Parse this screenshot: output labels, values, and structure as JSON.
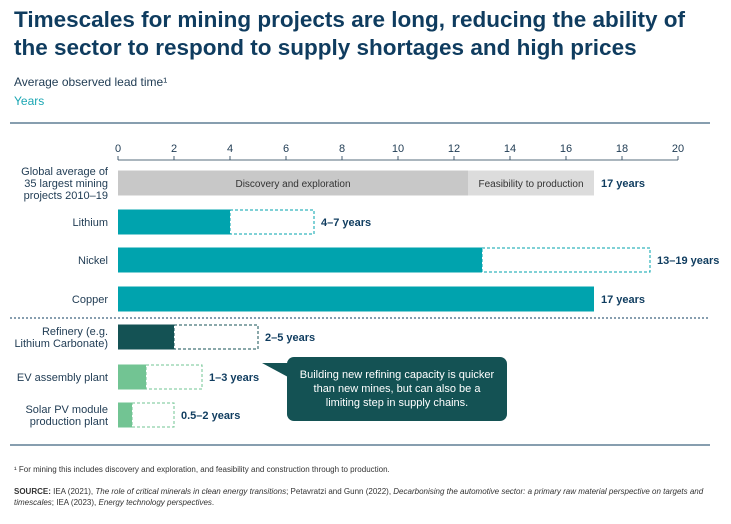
{
  "title": "Timescales for mining projects are long, reducing the ability of the sector to respond to supply shortages and high prices",
  "subtitle": "Average observed lead time¹",
  "unit": "Years",
  "callout": "Building new refining capacity is quicker than new mines, but can also be a limiting step in supply chains.",
  "footnote": "¹ For mining this includes discovery and exploration, and feasibility and construction through to production.",
  "source": {
    "label": "SOURCE:",
    "text1": " IEA (2021), ",
    "italic1": "The role of critical minerals in clean energy transitions",
    "text2": "; Petavratzi and Gunn (2022), ",
    "italic2": "Decarbonising the automotive sector: a primary raw material perspective on targets and timescales",
    "text3": "; IEA (2023), ",
    "italic3": "Energy technology perspectives",
    "text4": "."
  },
  "colors": {
    "mining": "#00a3ae",
    "refinery": "#145254",
    "manufacturing": "#72c493",
    "discovery": "#c8c8c8",
    "feasibility": "#dcdcdc",
    "label": "#1f3b53"
  },
  "chart_data": {
    "type": "bar",
    "orientation": "horizontal",
    "xlim": [
      0,
      20
    ],
    "xticks": [
      0,
      2,
      4,
      6,
      8,
      10,
      12,
      14,
      16,
      18,
      20
    ],
    "categories": [
      "Global average of 35 largest mining projects 2010–19",
      "Lithium",
      "Nickel",
      "Copper",
      "Refinery (e.g. Lithium Carbonate)",
      "EV assembly plant",
      "Solar PV module production plant"
    ],
    "bars": [
      {
        "category": "Global average of 35 largest mining projects 2010–19",
        "label_lines": [
          "Global average of",
          "35 largest mining",
          "projects 2010–19"
        ],
        "segments": [
          {
            "name": "Discovery and exploration",
            "start": 0,
            "end": 12.5,
            "color_key": "discovery"
          },
          {
            "name": "Feasibility to production",
            "start": 12.5,
            "end": 17,
            "color_key": "feasibility"
          }
        ],
        "value_label": "17 years"
      },
      {
        "category": "Lithium",
        "label_lines": [
          "Lithium"
        ],
        "min": 4,
        "max": 7,
        "color_key": "mining",
        "value_label": "4–7 years"
      },
      {
        "category": "Nickel",
        "label_lines": [
          "Nickel"
        ],
        "min": 13,
        "max": 19,
        "color_key": "mining",
        "value_label": "13–19 years"
      },
      {
        "category": "Copper",
        "label_lines": [
          "Copper"
        ],
        "min": 17,
        "max": 17,
        "color_key": "mining",
        "value_label": "17 years"
      },
      {
        "category": "Refinery (e.g. Lithium Carbonate)",
        "label_lines": [
          "Refinery (e.g.",
          "Lithium Carbonate)"
        ],
        "min": 2,
        "max": 5,
        "color_key": "refinery",
        "value_label": "2–5 years"
      },
      {
        "category": "EV assembly plant",
        "label_lines": [
          "EV assembly plant"
        ],
        "min": 1,
        "max": 3,
        "color_key": "manufacturing",
        "value_label": "1–3 years"
      },
      {
        "category": "Solar PV module production plant",
        "label_lines": [
          "Solar PV module",
          "production plant"
        ],
        "min": 0.5,
        "max": 2,
        "color_key": "manufacturing",
        "value_label": "0.5–2 years"
      }
    ],
    "grid": false,
    "legend": "none"
  }
}
